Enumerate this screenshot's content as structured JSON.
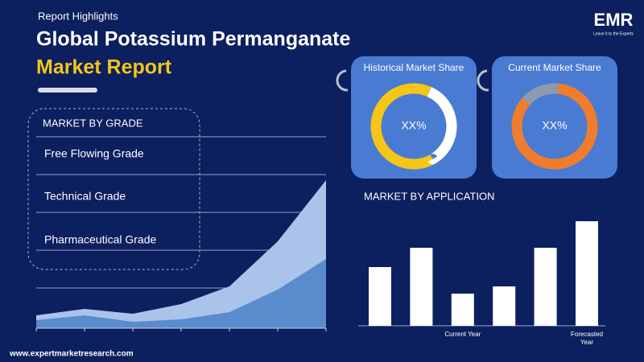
{
  "header": {
    "kicker": "Report Highlights",
    "title_line1": "Global Potassium Permanganate",
    "title_line2": "Market Report"
  },
  "logo": {
    "text": "EMR",
    "tagline": "Leave it to the Experts"
  },
  "grade_panel": {
    "title": "MARKET BY GRADE",
    "items": [
      "Free Flowing Grade",
      "Technical Grade",
      "Pharmaceutical Grade"
    ]
  },
  "area_chart": {
    "type": "area",
    "series": [
      {
        "color": "#a9c3ea",
        "values": [
          16,
          24,
          18,
          30,
          52,
          108,
          184
        ]
      },
      {
        "color": "#5a8bcd",
        "values": [
          10,
          16,
          8,
          11,
          20,
          48,
          86
        ]
      }
    ]
  },
  "donuts": [
    {
      "title": "Historical Market Share",
      "label": "XX%",
      "values": [
        65,
        35
      ],
      "colors": [
        "#f5c518",
        "#ffffff"
      ]
    },
    {
      "title": "Current Market Share",
      "label": "XX%",
      "values": [
        85,
        15
      ],
      "colors": [
        "#ef7d2d",
        "#8e9aae"
      ]
    }
  ],
  "application_chart": {
    "type": "bar",
    "title": "MARKET BY APPLICATION",
    "color": "#ffffff",
    "categories": [
      null,
      null,
      "Current Year",
      null,
      null,
      "Forecasted Year"
    ],
    "values": [
      73,
      97,
      40,
      49,
      97,
      130
    ]
  },
  "footer": {
    "url": "www.expertmarketresearch.com"
  }
}
